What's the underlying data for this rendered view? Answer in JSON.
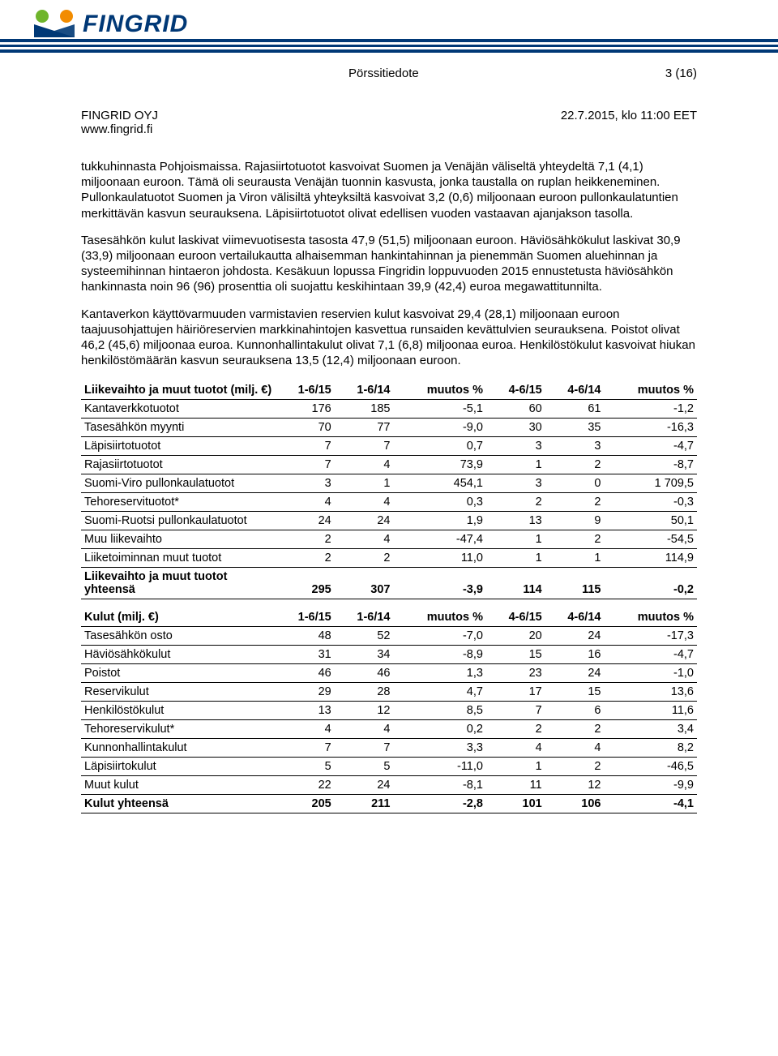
{
  "header": {
    "logo_text": "FINGRID",
    "press_release": "Pörssitiedote",
    "page_indicator": "3 (16)",
    "company": "FINGRID OYJ",
    "website": "www.fingrid.fi",
    "datetime": "22.7.2015, klo 11:00 EET"
  },
  "paragraphs": {
    "p1": "tukkuhinnasta Pohjoismaissa. Rajasiirtotuotot kasvoivat Suomen ja Venäjän väliseltä yhteydeltä 7,1 (4,1) miljoonaan euroon. Tämä oli seurausta Venäjän tuonnin kasvusta, jonka taustalla on ruplan heikkeneminen. Pullonkaulatuotot Suomen ja Viron välisiltä yhteyksiltä kasvoivat 3,2 (0,6) miljoonaan euroon pullonkaulatuntien merkittävän kasvun seurauksena. Läpisiirtotuotot olivat edellisen vuoden vastaavan ajanjakson tasolla.",
    "p2": "Tasesähkön kulut laskivat viimevuotisesta tasosta 47,9 (51,5) miljoonaan euroon. Häviösähkökulut laskivat 30,9 (33,9) miljoonaan euroon vertailukautta alhaisemman hankintahinnan ja pienemmän Suomen aluehinnan ja systeemihinnan hintaeron johdosta. Kesäkuun lopussa Fingridin loppuvuoden 2015 ennustetusta häviösähkön hankinnasta noin 96 (96) prosenttia oli suojattu keskihintaan 39,9 (42,4) euroa megawattitunnilta.",
    "p3": "Kantaverkon käyttövarmuuden varmistavien reservien kulut kasvoivat 29,4 (28,1) miljoonaan euroon taajuusohjattujen häiriöreservien markkinahintojen kasvettua runsaiden kevättulvien seurauksena. Poistot olivat 46,2 (45,6) miljoonaa euroa. Kunnonhallintakulut olivat 7,1 (6,8) miljoonaa euroa. Henkilöstökulut kasvoivat hiukan henkilöstömäärän kasvun seurauksena 13,5 (12,4) miljoonaan euroon."
  },
  "table1": {
    "title": "Liikevaihto ja muut tuotot (milj. €)",
    "cols": [
      "1-6/15",
      "1-6/14",
      "muutos %",
      "4-6/15",
      "4-6/14",
      "muutos %"
    ],
    "rows": [
      {
        "label": "Kantaverkkotuotot",
        "v": [
          "176",
          "185",
          "-5,1",
          "60",
          "61",
          "-1,2"
        ]
      },
      {
        "label": "Tasesähkön myynti",
        "v": [
          "70",
          "77",
          "-9,0",
          "30",
          "35",
          "-16,3"
        ]
      },
      {
        "label": "Läpisiirtotuotot",
        "v": [
          "7",
          "7",
          "0,7",
          "3",
          "3",
          "-4,7"
        ]
      },
      {
        "label": "Rajasiirtotuotot",
        "v": [
          "7",
          "4",
          "73,9",
          "1",
          "2",
          "-8,7"
        ]
      },
      {
        "label": "Suomi-Viro pullonkaulatuotot",
        "v": [
          "3",
          "1",
          "454,1",
          "3",
          "0",
          "1 709,5"
        ]
      },
      {
        "label": "Tehoreservituotot*",
        "v": [
          "4",
          "4",
          "0,3",
          "2",
          "2",
          "-0,3"
        ]
      },
      {
        "label": "Suomi-Ruotsi pullonkaulatuotot",
        "v": [
          "24",
          "24",
          "1,9",
          "13",
          "9",
          "50,1"
        ]
      },
      {
        "label": "Muu liikevaihto",
        "v": [
          "2",
          "4",
          "-47,4",
          "1",
          "2",
          "-54,5"
        ]
      },
      {
        "label": "Liiketoiminnan muut tuotot",
        "v": [
          "2",
          "2",
          "11,0",
          "1",
          "1",
          "114,9"
        ]
      }
    ],
    "total": {
      "label": "Liikevaihto ja muut tuotot yhteensä",
      "v": [
        "295",
        "307",
        "-3,9",
        "114",
        "115",
        "-0,2"
      ]
    }
  },
  "table2": {
    "title": "Kulut (milj. €)",
    "cols": [
      "1-6/15",
      "1-6/14",
      "muutos %",
      "4-6/15",
      "4-6/14",
      "muutos %"
    ],
    "rows": [
      {
        "label": "Tasesähkön osto",
        "v": [
          "48",
          "52",
          "-7,0",
          "20",
          "24",
          "-17,3"
        ]
      },
      {
        "label": "Häviösähkökulut",
        "v": [
          "31",
          "34",
          "-8,9",
          "15",
          "16",
          "-4,7"
        ]
      },
      {
        "label": "Poistot",
        "v": [
          "46",
          "46",
          "1,3",
          "23",
          "24",
          "-1,0"
        ]
      },
      {
        "label": "Reservikulut",
        "v": [
          "29",
          "28",
          "4,7",
          "17",
          "15",
          "13,6"
        ]
      },
      {
        "label": "Henkilöstökulut",
        "v": [
          "13",
          "12",
          "8,5",
          "7",
          "6",
          "11,6"
        ]
      },
      {
        "label": "Tehoreservikulut*",
        "v": [
          "4",
          "4",
          "0,2",
          "2",
          "2",
          "3,4"
        ]
      },
      {
        "label": "Kunnonhallintakulut",
        "v": [
          "7",
          "7",
          "3,3",
          "4",
          "4",
          "8,2"
        ]
      },
      {
        "label": "Läpisiirtokulut",
        "v": [
          "5",
          "5",
          "-11,0",
          "1",
          "2",
          "-46,5"
        ]
      },
      {
        "label": "Muut kulut",
        "v": [
          "22",
          "24",
          "-8,1",
          "11",
          "12",
          "-9,9"
        ]
      }
    ],
    "total": {
      "label": "Kulut yhteensä",
      "v": [
        "205",
        "211",
        "-2,8",
        "101",
        "106",
        "-4,1"
      ]
    }
  },
  "colors": {
    "brand_blue": "#003876",
    "accent_green": "#6fb52c",
    "accent_orange": "#f28c00"
  }
}
